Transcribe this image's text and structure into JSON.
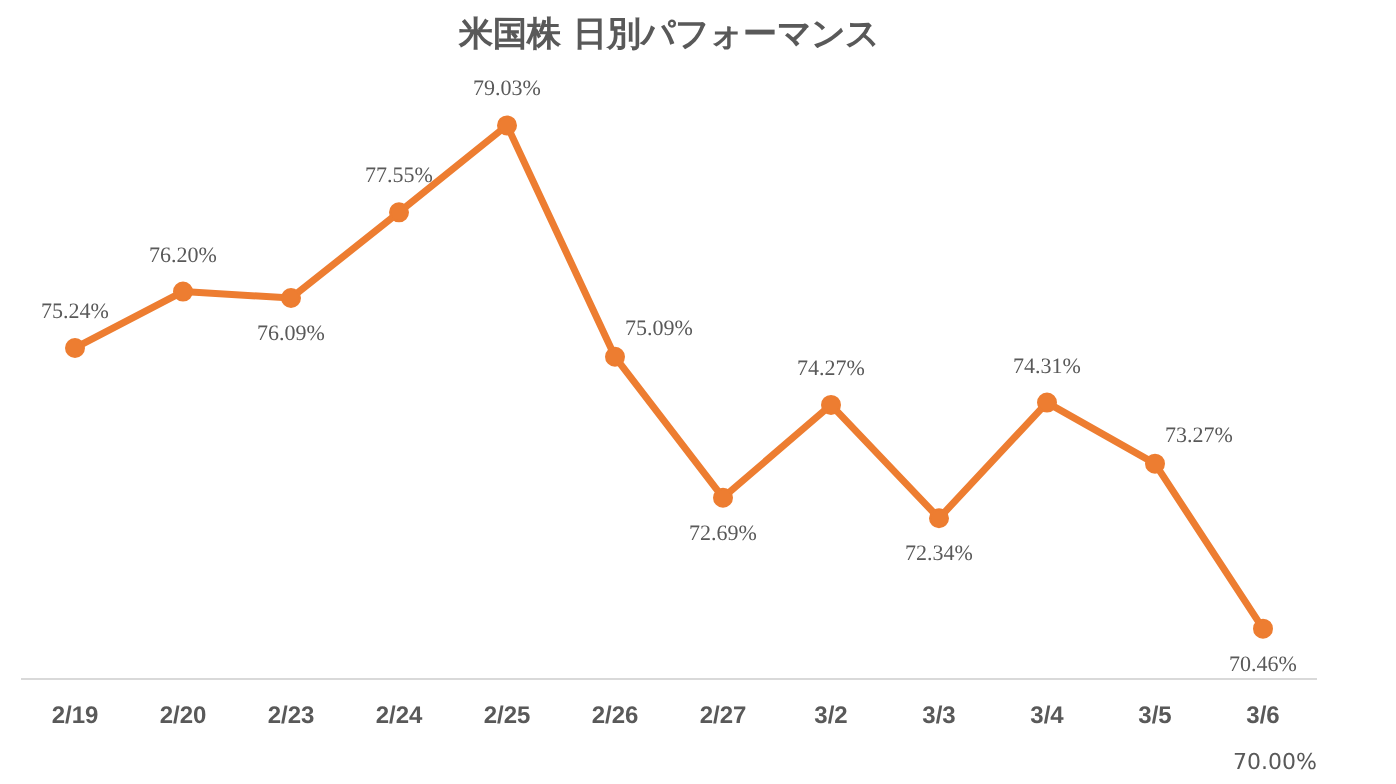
{
  "chart_data": {
    "type": "line",
    "title": "米国株 日別パフォーマンス",
    "categories": [
      "2/19",
      "2/20",
      "2/23",
      "2/24",
      "2/25",
      "2/26",
      "2/27",
      "3/2",
      "3/3",
      "3/4",
      "3/5",
      "3/6"
    ],
    "series": [
      {
        "color": "#ed7d31",
        "values": [
          75.24,
          76.2,
          76.09,
          77.55,
          79.03,
          75.09,
          72.69,
          74.27,
          72.34,
          74.31,
          73.27,
          70.46
        ],
        "value_labels": [
          "75.24%",
          "76.20%",
          "76.09%",
          "77.55%",
          "79.03%",
          "75.09%",
          "72.69%",
          "74.27%",
          "72.34%",
          "74.31%",
          "73.27%",
          "70.46%"
        ]
      }
    ],
    "tick_labels": "x",
    "marker": "circle",
    "line_style": "solid",
    "annotations": [
      "70.00%"
    ]
  }
}
